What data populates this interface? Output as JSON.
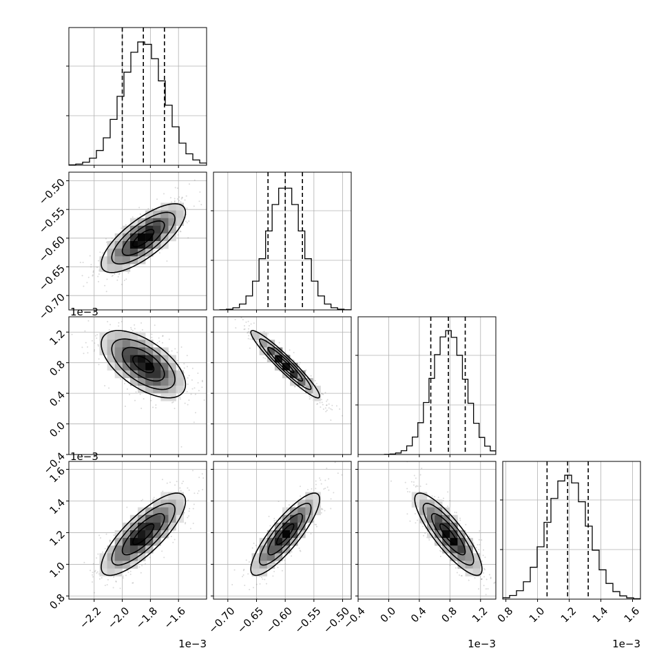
{
  "chart_data": {
    "type": "corner",
    "grid": true,
    "style": {
      "line_color": "#000000",
      "grid_color": "#b0b0b0",
      "sample_color": "#808080",
      "density_dark": "#000000",
      "density_light": "#ffffff"
    },
    "parameters": [
      {
        "id": "p0",
        "range": [
          -2.38,
          -1.4
        ],
        "ticks": [
          -2.2,
          -2.0,
          -1.8,
          -1.6
        ],
        "tick_labels": [
          "−2.2",
          "−2.0",
          "−1.8",
          "−1.6"
        ],
        "offset_label": "1e−3",
        "median": -1.85,
        "quantile_16": -2.0,
        "quantile_84": -1.7,
        "sigma": 0.15
      },
      {
        "id": "p1",
        "range": [
          -0.725,
          -0.485
        ],
        "ticks": [
          -0.7,
          -0.65,
          -0.6,
          -0.55,
          -0.5
        ],
        "tick_labels": [
          "−0.70",
          "−0.65",
          "−0.60",
          "−0.55",
          "−0.50"
        ],
        "offset_label": "",
        "median": -0.6,
        "quantile_16": -0.63,
        "quantile_84": -0.57,
        "sigma": 0.03
      },
      {
        "id": "p2",
        "range": [
          -0.4,
          1.4
        ],
        "ticks": [
          -0.4,
          0.0,
          0.4,
          0.8,
          1.2
        ],
        "tick_labels": [
          "−0.4",
          "0.0",
          "0.4",
          "0.8",
          "1.2"
        ],
        "offset_label": "1e−3",
        "median": 0.78,
        "quantile_16": 0.55,
        "quantile_84": 1.0,
        "sigma": 0.22
      },
      {
        "id": "p3",
        "range": [
          0.78,
          1.65
        ],
        "ticks": [
          0.8,
          1.0,
          1.2,
          1.4,
          1.6
        ],
        "tick_labels": [
          "0.8",
          "1.0",
          "1.2",
          "1.4",
          "1.6"
        ],
        "offset_label": "1e−3",
        "median": 1.19,
        "quantile_16": 1.06,
        "quantile_84": 1.32,
        "sigma": 0.13
      }
    ],
    "correlations": [
      [
        1.0,
        0.75,
        -0.6,
        0.8
      ],
      [
        0.75,
        1.0,
        -0.95,
        0.85
      ],
      [
        -0.6,
        -0.95,
        1.0,
        -0.85
      ],
      [
        0.8,
        0.85,
        -0.85,
        1.0
      ]
    ],
    "contour_levels_sigma": [
      0.5,
      1.0,
      1.5,
      2.0
    ]
  }
}
